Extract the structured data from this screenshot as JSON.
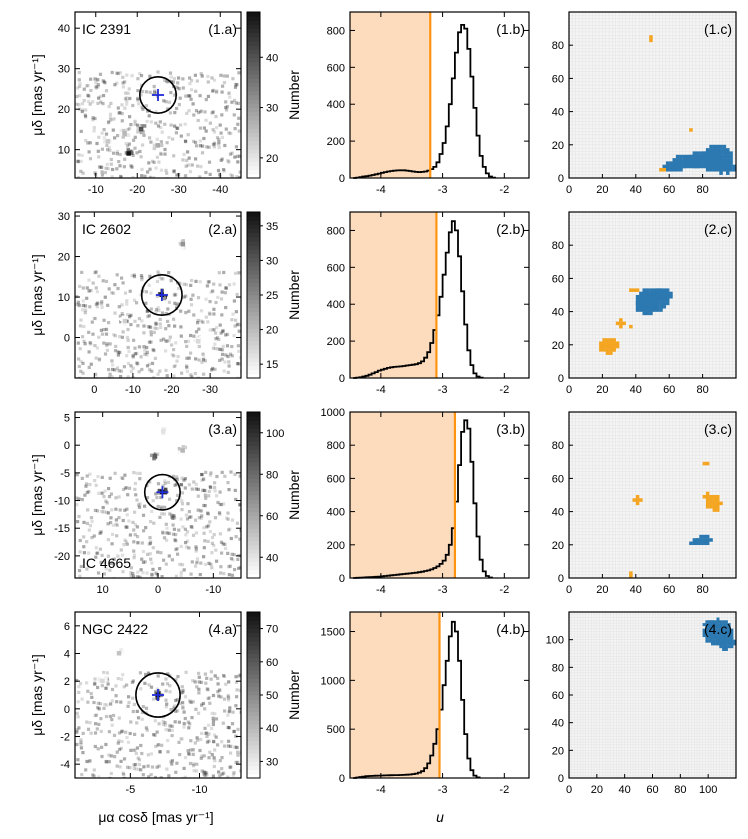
{
  "colors": {
    "cut_line": "#ff9410",
    "shade": "#fddcbe",
    "cluster_member": "#2c78b0",
    "secondary_group": "#f4a622",
    "cross": "#1f2bd6",
    "grid_background": "#f4f4f4"
  },
  "axis_titles": {
    "pm_x": "μα cosδ [mas yr⁻¹]",
    "pm_y": "μδ [mas yr⁻¹]",
    "colorbar": "Number",
    "u": "u"
  },
  "chart_data": [
    {
      "type": "heatmap",
      "panel": "1.a",
      "cluster": "IC 2391",
      "x_ticks": [
        -10,
        -20,
        -30,
        -40
      ],
      "y_ticks": [
        10,
        20,
        30,
        40
      ],
      "xlim": [
        -5,
        -45
      ],
      "ylim": [
        3,
        44
      ],
      "selection_circle": {
        "center": [
          -25,
          23.5
        ],
        "radius": 4.5
      },
      "cluster_center": [
        -25,
        23.5
      ],
      "colorbar": {
        "label": "Number",
        "ticks": [
          20,
          30,
          40
        ],
        "range": [
          16,
          49
        ]
      },
      "hot_spots": [
        {
          "x": -18,
          "y": 9,
          "value": 49
        },
        {
          "x": -21,
          "y": 15,
          "value": 40
        },
        {
          "x": -25,
          "y": 11,
          "value": 28
        },
        {
          "x": -13,
          "y": 12,
          "value": 24
        },
        {
          "x": -17,
          "y": 14,
          "value": 26
        }
      ]
    },
    {
      "type": "bar",
      "panel": "1.b",
      "x_ticks": [
        -4,
        -3,
        -2
      ],
      "y_ticks": [
        0,
        200,
        400,
        600,
        800
      ],
      "xlim": [
        -4.5,
        -1.6
      ],
      "ylim": [
        0,
        900
      ],
      "cut": -3.2,
      "hist": {
        "start": -4.45,
        "width": 0.05,
        "counts": [
          0,
          2,
          5,
          8,
          10,
          13,
          16,
          20,
          24,
          28,
          32,
          35,
          38,
          40,
          41,
          42,
          42,
          40,
          38,
          35,
          33,
          32,
          33,
          35,
          40,
          48,
          60,
          85,
          130,
          190,
          280,
          400,
          540,
          680,
          790,
          830,
          810,
          700,
          550,
          380,
          230,
          120,
          60,
          25,
          8,
          2
        ]
      }
    },
    {
      "type": "heatmap",
      "panel": "1.c",
      "xlim": [
        0,
        100
      ],
      "ylim": [
        0,
        100
      ],
      "x_ticks": [
        0,
        20,
        40,
        60,
        80
      ],
      "y_ticks": [
        0,
        20,
        40,
        60,
        80
      ],
      "groups": [
        {
          "color": "#2c78b0",
          "blobs": [
            [
              88,
              12,
              9,
              6
            ],
            [
              80,
              10,
              10,
              5
            ],
            [
              70,
              9,
              9,
              4
            ],
            [
              62,
              6,
              6,
              3
            ],
            [
              90,
              5,
              8,
              3
            ]
          ]
        },
        {
          "color": "#f4a622",
          "blobs": [
            [
              48,
              83,
              1.2,
              1.2
            ],
            [
              72,
              28,
              1,
              1
            ],
            [
              55,
              4,
              1,
              1
            ]
          ]
        }
      ]
    },
    {
      "type": "heatmap",
      "panel": "2.a",
      "cluster": "IC 2602",
      "x_ticks": [
        0,
        -10,
        -20,
        -30
      ],
      "y_ticks": [
        0,
        10,
        20,
        30
      ],
      "xlim": [
        5,
        -38
      ],
      "ylim": [
        -10,
        31
      ],
      "selection_circle": {
        "center": [
          -17.5,
          10.5
        ],
        "radius": 5
      },
      "cluster_center": [
        -17.5,
        10.5
      ],
      "colorbar": {
        "label": "Number",
        "ticks": [
          15,
          20,
          25,
          30,
          35
        ],
        "range": [
          13,
          37
        ]
      },
      "hot_spots": [
        {
          "x": -17.5,
          "y": 10.5,
          "value": 37
        },
        {
          "x": -23,
          "y": 23,
          "value": 24
        },
        {
          "x": -8,
          "y": 4,
          "value": 18
        },
        {
          "x": -27,
          "y": -1,
          "value": 17
        }
      ]
    },
    {
      "type": "bar",
      "panel": "2.b",
      "x_ticks": [
        -4,
        -3,
        -2
      ],
      "y_ticks": [
        0,
        200,
        400,
        600,
        800
      ],
      "xlim": [
        -4.5,
        -1.6
      ],
      "ylim": [
        0,
        900
      ],
      "cut": -3.1,
      "hist": {
        "start": -4.45,
        "width": 0.05,
        "counts": [
          0,
          2,
          4,
          8,
          12,
          18,
          25,
          32,
          40,
          45,
          50,
          55,
          58,
          60,
          62,
          63,
          65,
          68,
          70,
          72,
          75,
          80,
          90,
          110,
          140,
          190,
          260,
          340,
          440,
          560,
          680,
          790,
          850,
          800,
          660,
          470,
          290,
          150,
          70,
          25,
          8,
          2
        ]
      }
    },
    {
      "type": "heatmap",
      "panel": "2.c",
      "xlim": [
        0,
        100
      ],
      "ylim": [
        0,
        100
      ],
      "x_ticks": [
        0,
        20,
        40,
        60,
        80
      ],
      "y_ticks": [
        0,
        20,
        40,
        60,
        80
      ],
      "groups": [
        {
          "color": "#2c78b0",
          "blobs": [
            [
              50,
              46,
              9,
              7
            ],
            [
              45,
              44,
              6,
              6
            ],
            [
              56,
              49,
              5,
              4
            ]
          ]
        },
        {
          "color": "#f4a622",
          "blobs": [
            [
              22,
              18,
              5,
              4
            ],
            [
              26,
              19,
              3,
              3
            ],
            [
              30,
              32,
              2.5,
              2
            ],
            [
              38,
              52,
              2,
              1.5
            ],
            [
              36,
              30,
              1.5,
              1.5
            ]
          ]
        }
      ]
    },
    {
      "type": "heatmap",
      "panel": "3.a",
      "cluster": "IC 4665",
      "x_ticks": [
        10,
        0,
        -10
      ],
      "y_ticks": [
        5,
        0,
        -5,
        -10,
        -15,
        -20
      ],
      "xlim": [
        15,
        -15
      ],
      "ylim": [
        -24,
        6
      ],
      "selection_circle": {
        "center": [
          -0.8,
          -8.5
        ],
        "radius": 3.2
      },
      "cluster_center": [
        -0.8,
        -8.5
      ],
      "colorbar": {
        "label": "Number",
        "ticks": [
          40,
          60,
          80,
          100
        ],
        "range": [
          30,
          110
        ]
      },
      "hot_spots": [
        {
          "x": -0.8,
          "y": -8.5,
          "value": 110
        },
        {
          "x": 0.5,
          "y": -2,
          "value": 85
        },
        {
          "x": -4.5,
          "y": -1,
          "value": 55
        },
        {
          "x": -1,
          "y": 2.5,
          "value": 40
        }
      ]
    },
    {
      "type": "bar",
      "panel": "3.b",
      "x_ticks": [
        -4,
        -3,
        -2
      ],
      "y_ticks": [
        0,
        200,
        400,
        600,
        800,
        1000
      ],
      "xlim": [
        -4.5,
        -1.6
      ],
      "ylim": [
        0,
        1000
      ],
      "cut": -2.8,
      "hist": {
        "start": -4.45,
        "width": 0.05,
        "counts": [
          0,
          1,
          2,
          3,
          4,
          5,
          6,
          7,
          8,
          10,
          12,
          14,
          16,
          18,
          20,
          22,
          24,
          26,
          28,
          30,
          32,
          35,
          38,
          42,
          46,
          52,
          60,
          70,
          85,
          105,
          140,
          200,
          300,
          460,
          680,
          880,
          950,
          900,
          700,
          450,
          250,
          110,
          40,
          12,
          3
        ]
      }
    },
    {
      "type": "heatmap",
      "panel": "3.c",
      "xlim": [
        0,
        100
      ],
      "ylim": [
        0,
        100
      ],
      "x_ticks": [
        0,
        20,
        40,
        60,
        80
      ],
      "y_ticks": [
        0,
        20,
        40,
        60,
        80
      ],
      "groups": [
        {
          "color": "#2c78b0",
          "blobs": [
            [
              80,
              22,
              4,
              3
            ],
            [
              75,
              21,
              3,
              2
            ]
          ]
        },
        {
          "color": "#f4a622",
          "blobs": [
            [
              86,
              44,
              4,
              4
            ],
            [
              82,
              48,
              3,
              2
            ],
            [
              40,
              46,
              2,
              3
            ],
            [
              81,
              68,
              1.5,
              2
            ],
            [
              36,
              1,
              1,
              1
            ],
            [
              10,
              53,
              0.8,
              0.8
            ],
            [
              9,
              18,
              0.8,
              0.8
            ],
            [
              70,
              55,
              0.8,
              0.8
            ],
            [
              93,
              37,
              0.8,
              0.8
            ]
          ]
        }
      ]
    },
    {
      "type": "heatmap",
      "panel": "4.a",
      "cluster": "NGC 2422",
      "x_ticks": [
        -5,
        -10
      ],
      "y_ticks": [
        -4,
        -2,
        0,
        2,
        4,
        6
      ],
      "xlim": [
        -1,
        -13
      ],
      "ylim": [
        -5,
        7
      ],
      "selection_circle": {
        "center": [
          -7,
          1
        ],
        "radius": 1.6
      },
      "cluster_center": [
        -7,
        1
      ],
      "colorbar": {
        "label": "Number",
        "ticks": [
          30,
          40,
          50,
          60,
          70
        ],
        "range": [
          25,
          75
        ]
      },
      "hot_spots": [
        {
          "x": -7,
          "y": 1,
          "value": 75
        },
        {
          "x": -4.2,
          "y": 4,
          "value": 38
        },
        {
          "x": -3,
          "y": 2,
          "value": 33
        },
        {
          "x": -5,
          "y": 5.5,
          "value": 30
        }
      ]
    },
    {
      "type": "bar",
      "panel": "4.b",
      "x_ticks": [
        -4,
        -3,
        -2
      ],
      "y_ticks": [
        0,
        500,
        1000,
        1500
      ],
      "xlim": [
        -4.5,
        -1.6
      ],
      "ylim": [
        0,
        1700
      ],
      "cut": -3.05,
      "hist": {
        "start": -4.45,
        "width": 0.05,
        "counts": [
          0,
          5,
          10,
          14,
          18,
          20,
          22,
          24,
          25,
          26,
          27,
          28,
          29,
          30,
          30,
          31,
          32,
          34,
          36,
          40,
          45,
          55,
          70,
          100,
          150,
          230,
          350,
          500,
          700,
          950,
          1200,
          1450,
          1600,
          1500,
          1200,
          800,
          450,
          200,
          80,
          25,
          6
        ]
      }
    },
    {
      "type": "heatmap",
      "panel": "4.c",
      "xlim": [
        0,
        120
      ],
      "ylim": [
        0,
        120
      ],
      "x_ticks": [
        0,
        20,
        40,
        60,
        80,
        100
      ],
      "y_ticks": [
        0,
        20,
        40,
        60,
        80,
        100
      ],
      "groups": [
        {
          "color": "#2c78b0",
          "blobs": [
            [
              106,
              104,
              10,
              9
            ],
            [
              112,
              97,
              6,
              5
            ],
            [
              100,
              110,
              4,
              3
            ]
          ]
        },
        {
          "color": "#f4a622",
          "blobs": []
        }
      ]
    }
  ]
}
